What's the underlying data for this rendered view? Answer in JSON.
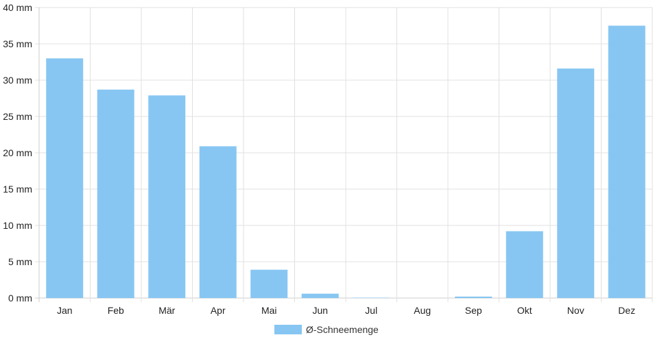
{
  "chart_data": {
    "type": "bar",
    "categories": [
      "Jan",
      "Feb",
      "Mär",
      "Apr",
      "Mai",
      "Jun",
      "Jul",
      "Aug",
      "Sep",
      "Okt",
      "Nov",
      "Dez"
    ],
    "series": [
      {
        "name": "Ø-Schneemenge",
        "values": [
          33.0,
          28.7,
          27.9,
          20.9,
          3.9,
          0.6,
          0.05,
          0.0,
          0.2,
          9.2,
          31.6,
          37.5
        ],
        "color": "#87c6f2"
      }
    ],
    "yticks": [
      "0 mm",
      "5 mm",
      "10 mm",
      "15 mm",
      "20 mm",
      "25 mm",
      "30 mm",
      "35 mm",
      "40 mm"
    ],
    "ylim": [
      0,
      40
    ],
    "grid": true,
    "legend_position": "bottom-center",
    "grid_color": "#e0e0e0",
    "axis_color": "#cccccc"
  }
}
